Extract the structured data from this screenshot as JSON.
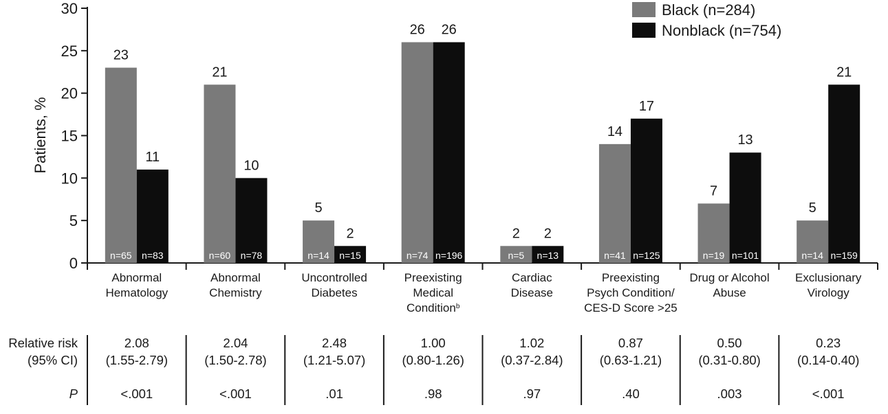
{
  "chart_data": {
    "type": "bar",
    "ylabel": "Patients, %",
    "ylim": [
      0,
      30
    ],
    "yticks": [
      0,
      5,
      10,
      15,
      20,
      25,
      30
    ],
    "legend_position": "top-right",
    "colors": {
      "Black": "#7a7a7a",
      "Nonblack": "#0d0d0d"
    },
    "series": [
      {
        "name": "Black (n=284)",
        "key": "Black",
        "values": [
          23,
          21,
          5,
          26,
          2,
          14,
          7,
          5
        ],
        "n_labels": [
          "n=65",
          "n=60",
          "n=14",
          "n=74",
          "n=5",
          "n=41",
          "n=19",
          "n=14"
        ]
      },
      {
        "name": "Nonblack (n=754)",
        "key": "Nonblack",
        "values": [
          11,
          10,
          2,
          26,
          2,
          17,
          13,
          21
        ],
        "n_labels": [
          "n=83",
          "n=78",
          "n=15",
          "n=196",
          "n=13",
          "n=125",
          "n=101",
          "n=159"
        ]
      }
    ],
    "categories": [
      {
        "lines": [
          "Abnormal",
          "Hematology"
        ]
      },
      {
        "lines": [
          "Abnormal",
          "Chemistry"
        ]
      },
      {
        "lines": [
          "Uncontrolled",
          "Diabetes"
        ]
      },
      {
        "lines": [
          "Preexisting",
          "Medical",
          "Condition"
        ],
        "superscript": "b"
      },
      {
        "lines": [
          "Cardiac",
          "Disease"
        ]
      },
      {
        "lines": [
          "Preexisting",
          "Psych Condition/",
          "CES-D Score >25"
        ]
      },
      {
        "lines": [
          "Drug or Alcohol",
          "Abuse"
        ]
      },
      {
        "lines": [
          "Exclusionary",
          "Virology"
        ]
      }
    ],
    "stats_table": {
      "row_labels": {
        "rr_line1": "Relative risk",
        "rr_line2": "(95% CI)",
        "p": "P"
      },
      "relative_risk": [
        "2.08",
        "2.04",
        "2.48",
        "1.00",
        "1.02",
        "0.87",
        "0.50",
        "0.23"
      ],
      "ci": [
        "(1.55-2.79)",
        "(1.50-2.78)",
        "(1.21-5.07)",
        "(0.80-1.26)",
        "(0.37-2.84)",
        "(0.63-1.21)",
        "(0.31-0.80)",
        "(0.14-0.40)"
      ],
      "p": [
        "<.001",
        "<.001",
        ".01",
        ".98",
        ".97",
        ".40",
        ".003",
        "<.001"
      ]
    }
  }
}
